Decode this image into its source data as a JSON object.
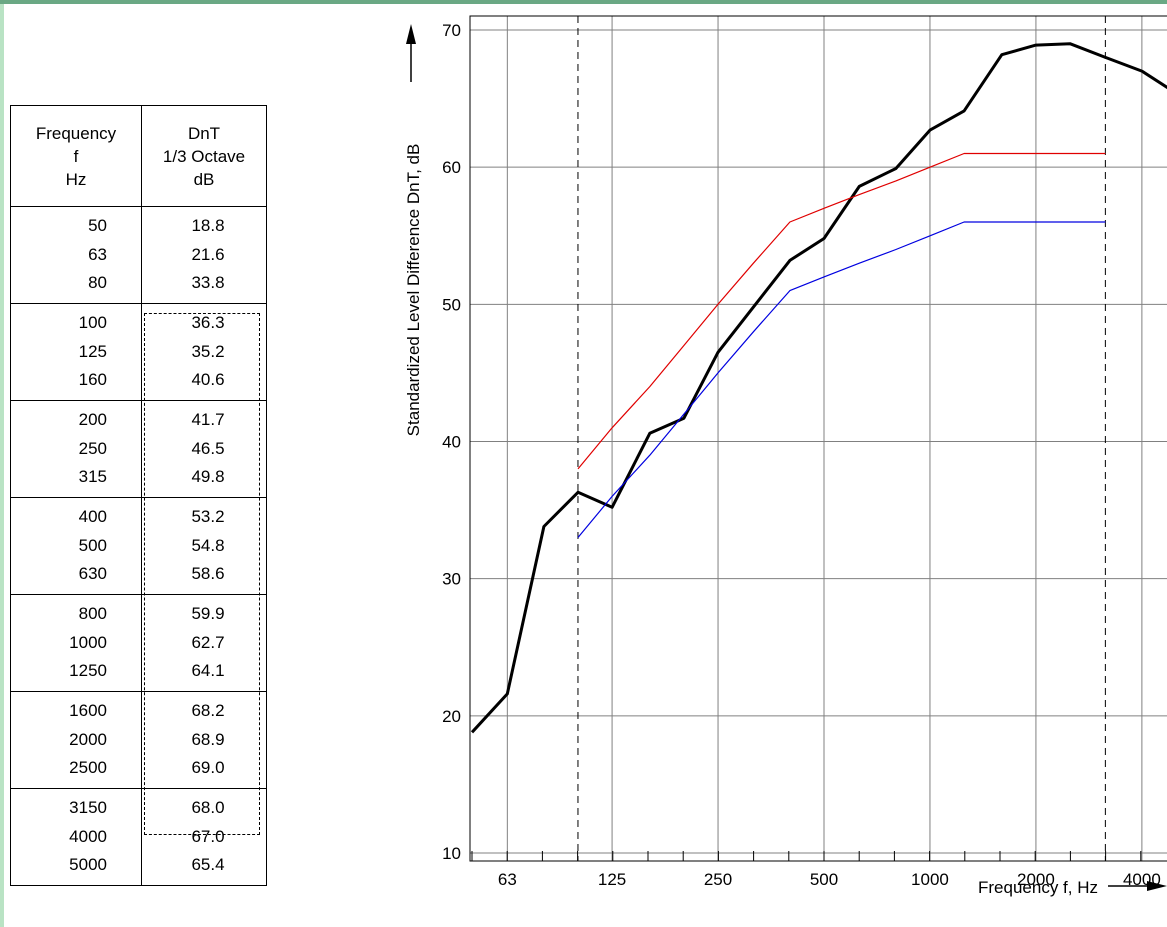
{
  "colors": {
    "frame_left": "#b9e3c4",
    "frame_top": "#6aa884",
    "measured": "#000000",
    "red_curve": "#e00000",
    "blue_curve": "#0000e0"
  },
  "table": {
    "header": {
      "col1": [
        "Frequency",
        "f",
        "Hz"
      ],
      "col2": [
        "DnT",
        "1/3 Octave",
        "dB"
      ]
    },
    "groups": [
      {
        "freqs": [
          "50",
          "63",
          "80"
        ],
        "values": [
          "18.8",
          "21.6",
          "33.8"
        ]
      },
      {
        "freqs": [
          "100",
          "125",
          "160"
        ],
        "values": [
          "36.3",
          "35.2",
          "40.6"
        ]
      },
      {
        "freqs": [
          "200",
          "250",
          "315"
        ],
        "values": [
          "41.7",
          "46.5",
          "49.8"
        ]
      },
      {
        "freqs": [
          "400",
          "500",
          "630"
        ],
        "values": [
          "53.2",
          "54.8",
          "58.6"
        ]
      },
      {
        "freqs": [
          "800",
          "1000",
          "1250"
        ],
        "values": [
          "59.9",
          "62.7",
          "64.1"
        ]
      },
      {
        "freqs": [
          "1600",
          "2000",
          "2500"
        ],
        "values": [
          "68.2",
          "68.9",
          "69.0"
        ]
      },
      {
        "freqs": [
          "3150",
          "4000",
          "5000"
        ],
        "values": [
          "68.0",
          "67.0",
          "65.4"
        ]
      }
    ]
  },
  "chart_data": {
    "type": "line",
    "xlabel": "Frequency f, Hz",
    "ylabel": "Standardized Level Difference DnT, dB",
    "x_scale": "log",
    "x_tick_labels": [
      "63",
      "125",
      "250",
      "500",
      "1000",
      "2000",
      "4000"
    ],
    "x_tick_values": [
      63,
      125,
      250,
      500,
      1000,
      2000,
      4000
    ],
    "y_tick_labels": [
      "10",
      "20",
      "30",
      "40",
      "50",
      "60",
      "70"
    ],
    "ylim": [
      10,
      70
    ],
    "grid": true,
    "dashed_markers_hz": [
      100,
      3150
    ],
    "series": [
      {
        "style": "thick-black",
        "x": [
          50,
          63,
          80,
          100,
          125,
          160,
          200,
          250,
          315,
          400,
          500,
          630,
          800,
          1000,
          1250,
          1600,
          2000,
          2500,
          3150,
          4000,
          5000
        ],
        "y": [
          18.8,
          21.6,
          33.8,
          36.3,
          35.2,
          40.6,
          41.7,
          46.5,
          49.8,
          53.2,
          54.8,
          58.6,
          59.9,
          62.7,
          64.1,
          68.2,
          68.9,
          69.0,
          68.0,
          67.0,
          65.4
        ]
      },
      {
        "style": "thin-red",
        "x": [
          100,
          125,
          160,
          200,
          250,
          315,
          400,
          500,
          630,
          800,
          1000,
          1250,
          1600,
          2000,
          2500,
          3150
        ],
        "y": [
          38,
          41,
          44,
          47,
          50,
          53,
          56,
          57,
          58,
          59,
          60,
          61,
          61,
          61,
          61,
          61
        ]
      },
      {
        "style": "thin-blue",
        "x": [
          100,
          125,
          160,
          200,
          250,
          315,
          400,
          500,
          630,
          800,
          1000,
          1250,
          1600,
          2000,
          2500,
          3150
        ],
        "y": [
          33,
          36,
          39,
          42,
          45,
          48,
          51,
          52,
          53,
          54,
          55,
          56,
          56,
          56,
          56,
          56
        ]
      }
    ]
  }
}
